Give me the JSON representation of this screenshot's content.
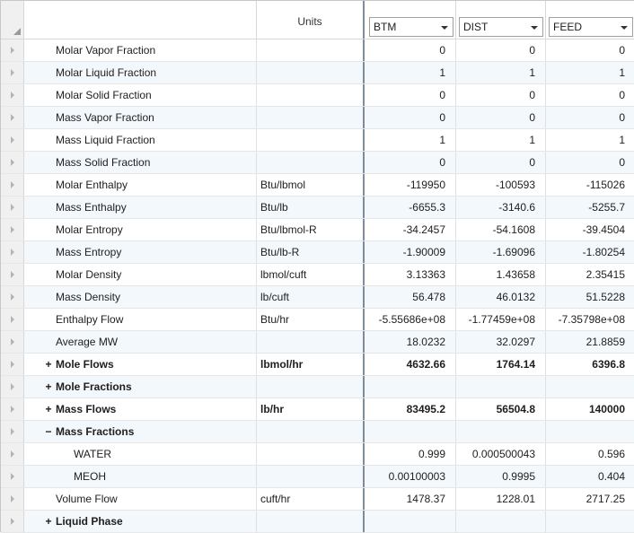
{
  "header": {
    "units_label": "Units",
    "streams": [
      "BTM",
      "DIST",
      "FEED"
    ]
  },
  "rows": [
    {
      "label": "Molar Vapor Fraction",
      "units": "",
      "values": [
        "0",
        "0",
        "0"
      ]
    },
    {
      "label": "Molar Liquid Fraction",
      "units": "",
      "values": [
        "1",
        "1",
        "1"
      ]
    },
    {
      "label": "Molar Solid Fraction",
      "units": "",
      "values": [
        "0",
        "0",
        "0"
      ]
    },
    {
      "label": "Mass Vapor Fraction",
      "units": "",
      "values": [
        "0",
        "0",
        "0"
      ]
    },
    {
      "label": "Mass Liquid Fraction",
      "units": "",
      "values": [
        "1",
        "1",
        "1"
      ]
    },
    {
      "label": "Mass Solid Fraction",
      "units": "",
      "values": [
        "0",
        "0",
        "0"
      ]
    },
    {
      "label": "Molar Enthalpy",
      "units": "Btu/lbmol",
      "values": [
        "-119950",
        "-100593",
        "-115026"
      ]
    },
    {
      "label": "Mass Enthalpy",
      "units": "Btu/lb",
      "values": [
        "-6655.3",
        "-3140.6",
        "-5255.7"
      ]
    },
    {
      "label": "Molar Entropy",
      "units": "Btu/lbmol-R",
      "values": [
        "-34.2457",
        "-54.1608",
        "-39.4504"
      ]
    },
    {
      "label": "Mass Entropy",
      "units": "Btu/lb-R",
      "values": [
        "-1.90009",
        "-1.69096",
        "-1.80254"
      ]
    },
    {
      "label": "Molar Density",
      "units": "lbmol/cuft",
      "values": [
        "3.13363",
        "1.43658",
        "2.35415"
      ]
    },
    {
      "label": "Mass Density",
      "units": "lb/cuft",
      "values": [
        "56.478",
        "46.0132",
        "51.5228"
      ]
    },
    {
      "label": "Enthalpy Flow",
      "units": "Btu/hr",
      "values": [
        "-5.55686e+08",
        "-1.77459e+08",
        "-7.35798e+08"
      ]
    },
    {
      "label": "Average MW",
      "units": "",
      "values": [
        "18.0232",
        "32.0297",
        "21.8859"
      ]
    },
    {
      "label": "Mole Flows",
      "units": "lbmol/hr",
      "values": [
        "4632.66",
        "1764.14",
        "6396.8"
      ],
      "group": true,
      "toggle": "+"
    },
    {
      "label": "Mole Fractions",
      "units": "",
      "values": [
        "",
        "",
        ""
      ],
      "group": true,
      "toggle": "+"
    },
    {
      "label": "Mass Flows",
      "units": "lb/hr",
      "values": [
        "83495.2",
        "56504.8",
        "140000"
      ],
      "group": true,
      "toggle": "+"
    },
    {
      "label": "Mass Fractions",
      "units": "",
      "values": [
        "",
        "",
        ""
      ],
      "group": true,
      "toggle": "−"
    },
    {
      "label": "WATER",
      "units": "",
      "values": [
        "0.999",
        "0.000500043",
        "0.596"
      ],
      "level": 1
    },
    {
      "label": "MEOH",
      "units": "",
      "values": [
        "0.00100003",
        "0.9995",
        "0.404"
      ],
      "level": 1
    },
    {
      "label": "Volume Flow",
      "units": "cuft/hr",
      "values": [
        "1478.37",
        "1228.01",
        "2717.25"
      ]
    },
    {
      "label": "Liquid Phase",
      "units": "",
      "values": [
        "",
        "",
        ""
      ],
      "group": true,
      "toggle": "+"
    }
  ]
}
